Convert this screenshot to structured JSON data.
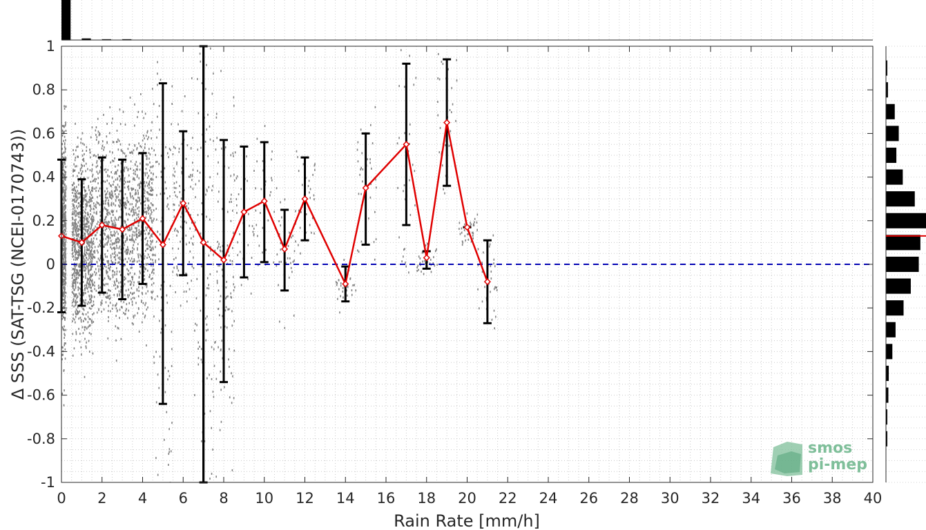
{
  "chart_data": {
    "type": "line",
    "xlabel": "Rain Rate [mm/h]",
    "ylabel": "Δ SSS (SAT-TSG (NCEI-0170743))",
    "xlim": [
      0,
      40
    ],
    "ylim": [
      -1,
      1
    ],
    "x_ticks": [
      "0",
      "2",
      "4",
      "6",
      "8",
      "10",
      "12",
      "14",
      "16",
      "18",
      "20",
      "22",
      "24",
      "26",
      "28",
      "30",
      "32",
      "34",
      "36",
      "38",
      "40"
    ],
    "y_ticks": [
      "1",
      "0.8",
      "0.6",
      "0.4",
      "0.2",
      "0",
      "-0.2",
      "-0.4",
      "-0.6",
      "-0.8",
      "-1"
    ],
    "grid": "minor dotted",
    "reference_line": {
      "y": 0,
      "style": "dashed",
      "color": "#0000b3"
    },
    "vertical_line": {
      "x": 7,
      "color": "#000000"
    },
    "series": [
      {
        "points": [
          {
            "x": 0,
            "y": 0.13,
            "err_low": -0.22,
            "err_high": 0.48
          },
          {
            "x": 1,
            "y": 0.1,
            "err_low": -0.19,
            "err_high": 0.39
          },
          {
            "x": 2,
            "y": 0.18,
            "err_low": -0.13,
            "err_high": 0.49
          },
          {
            "x": 3,
            "y": 0.16,
            "err_low": -0.16,
            "err_high": 0.48
          },
          {
            "x": 4,
            "y": 0.21,
            "err_low": -0.09,
            "err_high": 0.51
          },
          {
            "x": 5,
            "y": 0.09,
            "err_low": -0.64,
            "err_high": 0.83
          },
          {
            "x": 6,
            "y": 0.28,
            "err_low": -0.05,
            "err_high": 0.61
          },
          {
            "x": 7,
            "y": 0.1,
            "err_low": -1.0,
            "err_high": 1.0
          },
          {
            "x": 8,
            "y": 0.02,
            "err_low": -0.54,
            "err_high": 0.57
          },
          {
            "x": 9,
            "y": 0.24,
            "err_low": -0.06,
            "err_high": 0.54
          },
          {
            "x": 10,
            "y": 0.29,
            "err_low": 0.01,
            "err_high": 0.56
          },
          {
            "x": 11,
            "y": 0.07,
            "err_low": -0.12,
            "err_high": 0.25
          },
          {
            "x": 12,
            "y": 0.3,
            "err_low": 0.11,
            "err_high": 0.49
          },
          {
            "x": 14,
            "y": -0.09,
            "err_low": -0.17,
            "err_high": -0.01
          },
          {
            "x": 15,
            "y": 0.35,
            "err_low": 0.09,
            "err_high": 0.6
          },
          {
            "x": 17,
            "y": 0.55,
            "err_low": 0.18,
            "err_high": 0.92
          },
          {
            "x": 18,
            "y": 0.03,
            "err_low": -0.02,
            "err_high": 0.06
          },
          {
            "x": 19,
            "y": 0.65,
            "err_low": 0.36,
            "err_high": 0.94
          },
          {
            "x": 20,
            "y": 0.17,
            "err_low": 0.17,
            "err_high": 0.17
          },
          {
            "x": 21,
            "y": -0.08,
            "err_low": -0.27,
            "err_high": 0.11
          }
        ],
        "color": "#e00000",
        "marker": "diamond"
      }
    ],
    "top_histogram": [
      {
        "x": 0,
        "count": 1.0
      },
      {
        "x": 1,
        "count": 0.04
      },
      {
        "x": 2,
        "count": 0.02
      },
      {
        "x": 3,
        "count": 0.02
      }
    ],
    "right_histogram": [
      {
        "y": 0.9,
        "count": 0.02
      },
      {
        "y": 0.8,
        "count": 0.05
      },
      {
        "y": 0.7,
        "count": 0.22
      },
      {
        "y": 0.6,
        "count": 0.32
      },
      {
        "y": 0.5,
        "count": 0.26
      },
      {
        "y": 0.4,
        "count": 0.42
      },
      {
        "y": 0.3,
        "count": 0.72
      },
      {
        "y": 0.2,
        "count": 1.0
      },
      {
        "y": 0.1,
        "count": 0.86
      },
      {
        "y": 0.0,
        "count": 0.82
      },
      {
        "y": -0.1,
        "count": 0.62
      },
      {
        "y": -0.2,
        "count": 0.44
      },
      {
        "y": -0.3,
        "count": 0.24
      },
      {
        "y": -0.4,
        "count": 0.16
      },
      {
        "y": -0.5,
        "count": 0.07
      },
      {
        "y": -0.6,
        "count": 0.06
      },
      {
        "y": -0.7,
        "count": 0.02
      },
      {
        "y": -0.8,
        "count": 0.02
      }
    ],
    "right_histogram_mean": 0.13,
    "colors": {
      "points": "#808080",
      "line": "#e00000",
      "errorbar": "#000000",
      "zero_line": "#0000b3",
      "hist": "#000000"
    }
  },
  "logo": {
    "line1": "smos",
    "line2": "pi-mep",
    "color": "#7fbf9a"
  }
}
